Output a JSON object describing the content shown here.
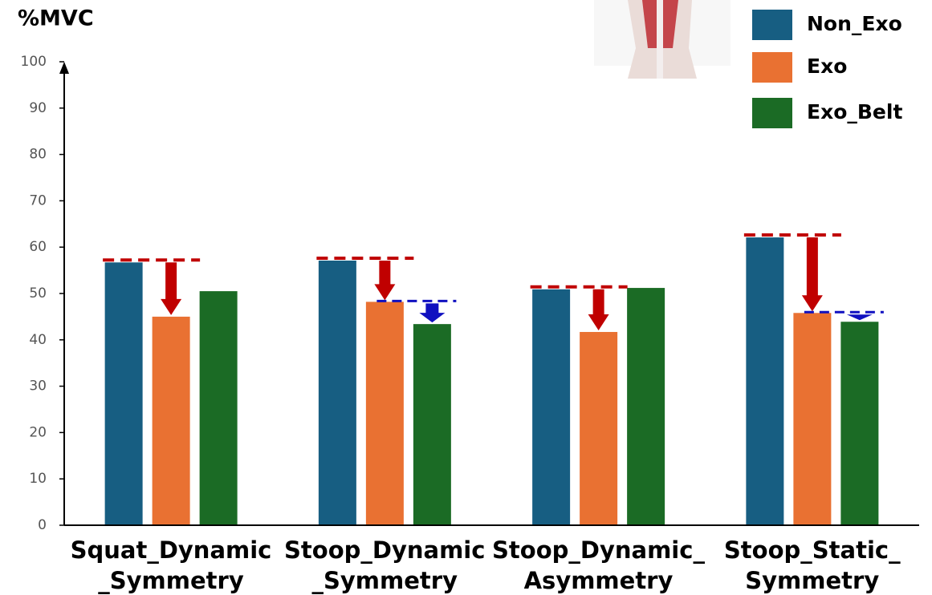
{
  "chart_data": {
    "type": "bar",
    "y_label": "%MVC",
    "categories": [
      "Squat_Dynamic\n_Symmetry",
      "Stoop_Dynamic\n_Symmetry",
      "Stoop_Dynamic_\nAsymmetry",
      "Stoop_Static_\nSymmetry"
    ],
    "series": [
      {
        "name": "Non_Exo",
        "color": "#175e82",
        "values": [
          56.7,
          57.1,
          50.9,
          62.1
        ]
      },
      {
        "name": "Exo",
        "color": "#e97132",
        "values": [
          45.0,
          48.2,
          41.7,
          45.8
        ]
      },
      {
        "name": "Exo_Belt",
        "color": "#1b6b25",
        "values": [
          50.5,
          43.4,
          51.2,
          43.9
        ]
      }
    ],
    "ylim": [
      0,
      100
    ],
    "yticks": [
      0,
      10,
      20,
      30,
      40,
      50,
      60,
      70,
      80,
      90,
      100
    ],
    "legend": "top-right"
  }
}
